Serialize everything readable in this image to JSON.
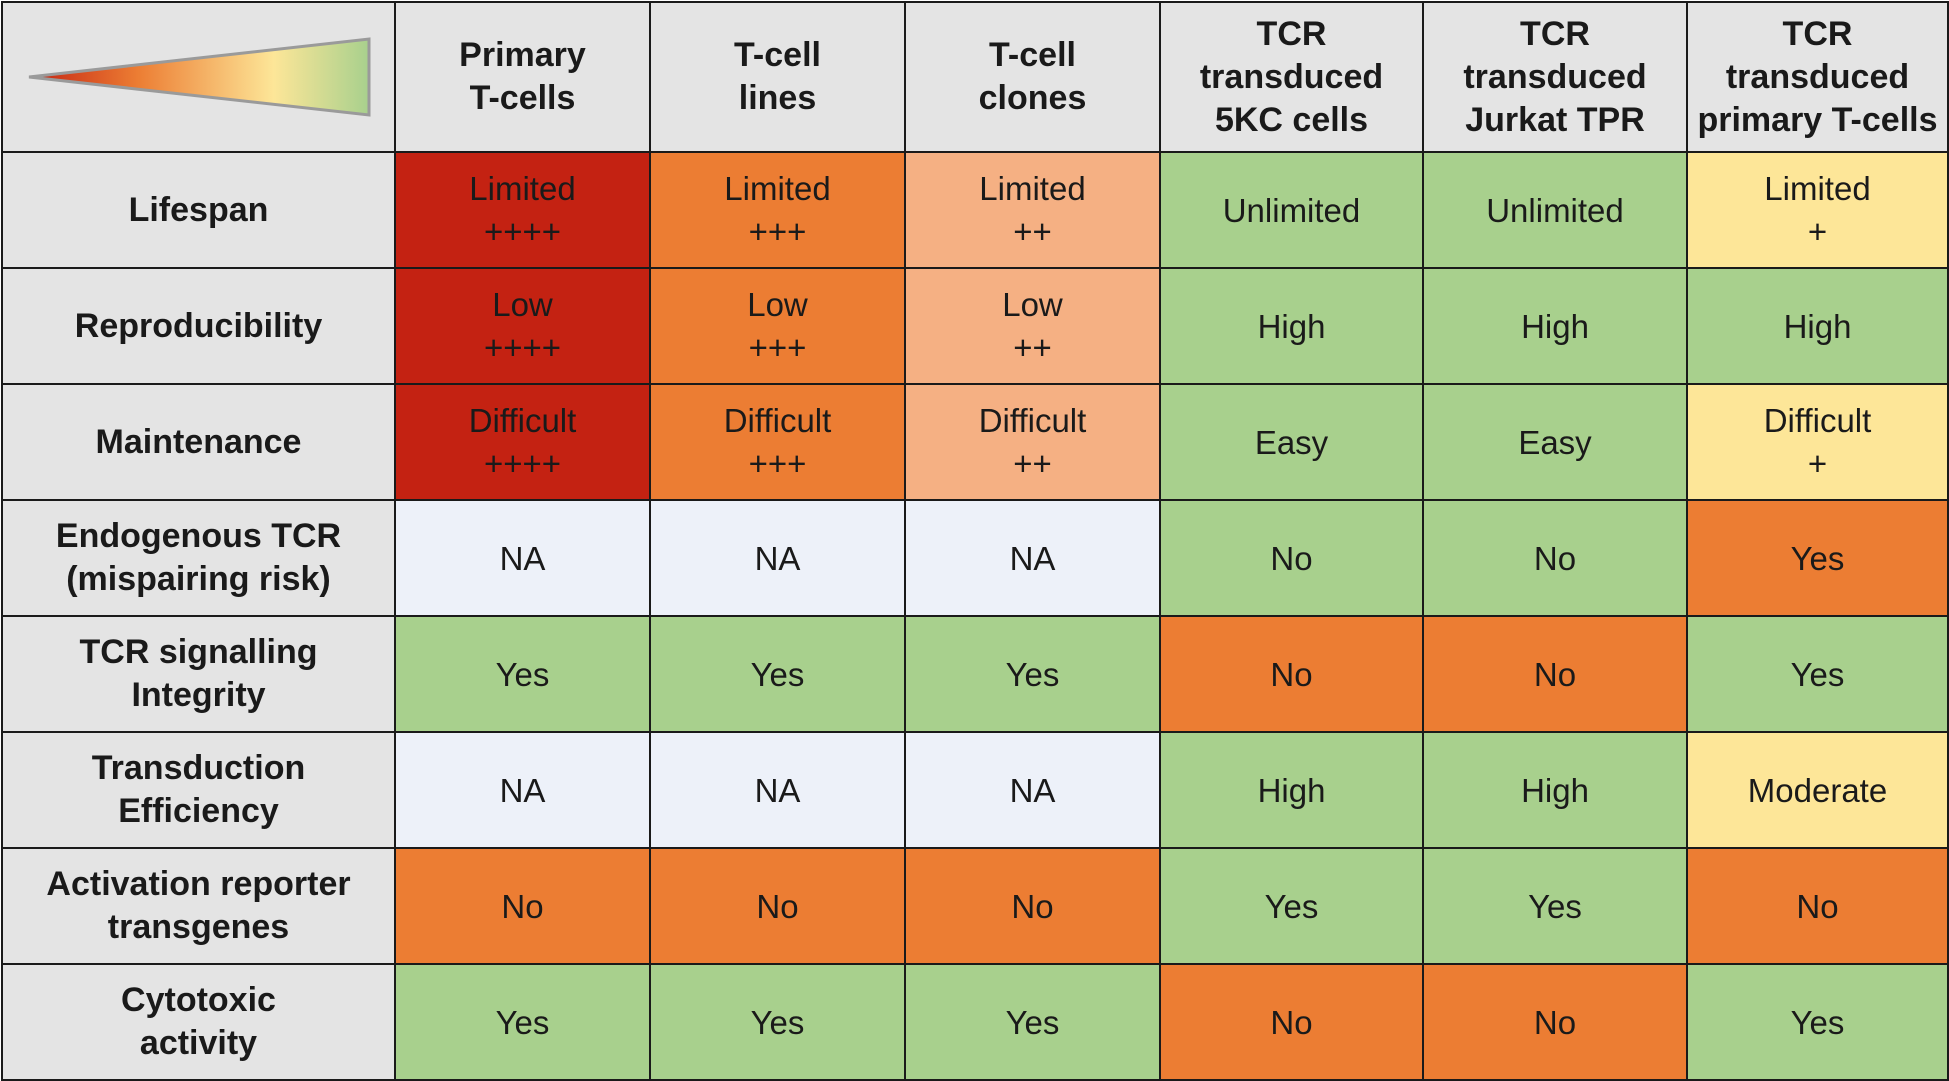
{
  "colors": {
    "header_bg": "#e4e4e4",
    "border": "#1a1a1a",
    "level_4": "#c42212",
    "level_3": "#ec7d33",
    "level_2": "#f5b083",
    "level_1": "#fde698",
    "best": "#a8d08d",
    "na": "#edf1f9"
  },
  "gradient": {
    "icon": "gradient-wedge-icon",
    "stops": [
      "#c42212",
      "#ec7d33",
      "#fde698",
      "#a8d08d"
    ]
  },
  "columns": [
    {
      "lines": [
        "Primary",
        "T-cells"
      ]
    },
    {
      "lines": [
        "T-cell",
        "lines"
      ]
    },
    {
      "lines": [
        "T-cell",
        "clones"
      ]
    },
    {
      "lines": [
        "TCR",
        "transduced",
        "5KC cells"
      ]
    },
    {
      "lines": [
        "TCR",
        "transduced",
        "Jurkat TPR"
      ]
    },
    {
      "lines": [
        "TCR",
        "transduced",
        "primary T-cells"
      ]
    }
  ],
  "rows": [
    {
      "name": "lifespan",
      "label": [
        "Lifespan"
      ],
      "cells": [
        {
          "lines": [
            "Limited",
            "++++"
          ],
          "color": "#c42212"
        },
        {
          "lines": [
            "Limited",
            "+++"
          ],
          "color": "#ec7d33"
        },
        {
          "lines": [
            "Limited",
            "++"
          ],
          "color": "#f5b083"
        },
        {
          "lines": [
            "Unlimited"
          ],
          "color": "#a8d08d"
        },
        {
          "lines": [
            "Unlimited"
          ],
          "color": "#a8d08d"
        },
        {
          "lines": [
            "Limited",
            "+"
          ],
          "color": "#fde698"
        }
      ]
    },
    {
      "name": "reproducibility",
      "label": [
        "Reproducibility"
      ],
      "cells": [
        {
          "lines": [
            "Low",
            "++++"
          ],
          "color": "#c42212"
        },
        {
          "lines": [
            "Low",
            "+++"
          ],
          "color": "#ec7d33"
        },
        {
          "lines": [
            "Low",
            "++"
          ],
          "color": "#f5b083"
        },
        {
          "lines": [
            "High"
          ],
          "color": "#a8d08d"
        },
        {
          "lines": [
            "High"
          ],
          "color": "#a8d08d"
        },
        {
          "lines": [
            "High"
          ],
          "color": "#a8d08d"
        }
      ]
    },
    {
      "name": "maintenance",
      "label": [
        "Maintenance"
      ],
      "cells": [
        {
          "lines": [
            "Difficult",
            "++++"
          ],
          "color": "#c42212"
        },
        {
          "lines": [
            "Difficult",
            "+++"
          ],
          "color": "#ec7d33"
        },
        {
          "lines": [
            "Difficult",
            "++"
          ],
          "color": "#f5b083"
        },
        {
          "lines": [
            "Easy"
          ],
          "color": "#a8d08d"
        },
        {
          "lines": [
            "Easy"
          ],
          "color": "#a8d08d"
        },
        {
          "lines": [
            "Difficult",
            "+"
          ],
          "color": "#fde698"
        }
      ]
    },
    {
      "name": "endogenous-tcr",
      "label": [
        "Endogenous TCR",
        "(mispairing risk)"
      ],
      "cells": [
        {
          "lines": [
            "NA"
          ],
          "color": "#edf1f9"
        },
        {
          "lines": [
            "NA"
          ],
          "color": "#edf1f9"
        },
        {
          "lines": [
            "NA"
          ],
          "color": "#edf1f9"
        },
        {
          "lines": [
            "No"
          ],
          "color": "#a8d08d"
        },
        {
          "lines": [
            "No"
          ],
          "color": "#a8d08d"
        },
        {
          "lines": [
            "Yes"
          ],
          "color": "#ec7d33"
        }
      ]
    },
    {
      "name": "tcr-signalling",
      "label": [
        "TCR signalling",
        "Integrity"
      ],
      "cells": [
        {
          "lines": [
            "Yes"
          ],
          "color": "#a8d08d"
        },
        {
          "lines": [
            "Yes"
          ],
          "color": "#a8d08d"
        },
        {
          "lines": [
            "Yes"
          ],
          "color": "#a8d08d"
        },
        {
          "lines": [
            "No"
          ],
          "color": "#ec7d33"
        },
        {
          "lines": [
            "No"
          ],
          "color": "#ec7d33"
        },
        {
          "lines": [
            "Yes"
          ],
          "color": "#a8d08d"
        }
      ]
    },
    {
      "name": "transduction-efficiency",
      "label": [
        "Transduction",
        "Efficiency"
      ],
      "cells": [
        {
          "lines": [
            "NA"
          ],
          "color": "#edf1f9"
        },
        {
          "lines": [
            "NA"
          ],
          "color": "#edf1f9"
        },
        {
          "lines": [
            "NA"
          ],
          "color": "#edf1f9"
        },
        {
          "lines": [
            "High"
          ],
          "color": "#a8d08d"
        },
        {
          "lines": [
            "High"
          ],
          "color": "#a8d08d"
        },
        {
          "lines": [
            "Moderate"
          ],
          "color": "#fde698"
        }
      ]
    },
    {
      "name": "activation-reporter",
      "label": [
        "Activation reporter",
        "transgenes"
      ],
      "cells": [
        {
          "lines": [
            "No"
          ],
          "color": "#ec7d33"
        },
        {
          "lines": [
            "No"
          ],
          "color": "#ec7d33"
        },
        {
          "lines": [
            "No"
          ],
          "color": "#ec7d33"
        },
        {
          "lines": [
            "Yes"
          ],
          "color": "#a8d08d"
        },
        {
          "lines": [
            "Yes"
          ],
          "color": "#a8d08d"
        },
        {
          "lines": [
            "No"
          ],
          "color": "#ec7d33"
        }
      ]
    },
    {
      "name": "cytotoxic-activity",
      "label": [
        "Cytotoxic",
        "activity"
      ],
      "cells": [
        {
          "lines": [
            "Yes"
          ],
          "color": "#a8d08d"
        },
        {
          "lines": [
            "Yes"
          ],
          "color": "#a8d08d"
        },
        {
          "lines": [
            "Yes"
          ],
          "color": "#a8d08d"
        },
        {
          "lines": [
            "No"
          ],
          "color": "#ec7d33"
        },
        {
          "lines": [
            "No"
          ],
          "color": "#ec7d33"
        },
        {
          "lines": [
            "Yes"
          ],
          "color": "#a8d08d"
        }
      ]
    }
  ]
}
